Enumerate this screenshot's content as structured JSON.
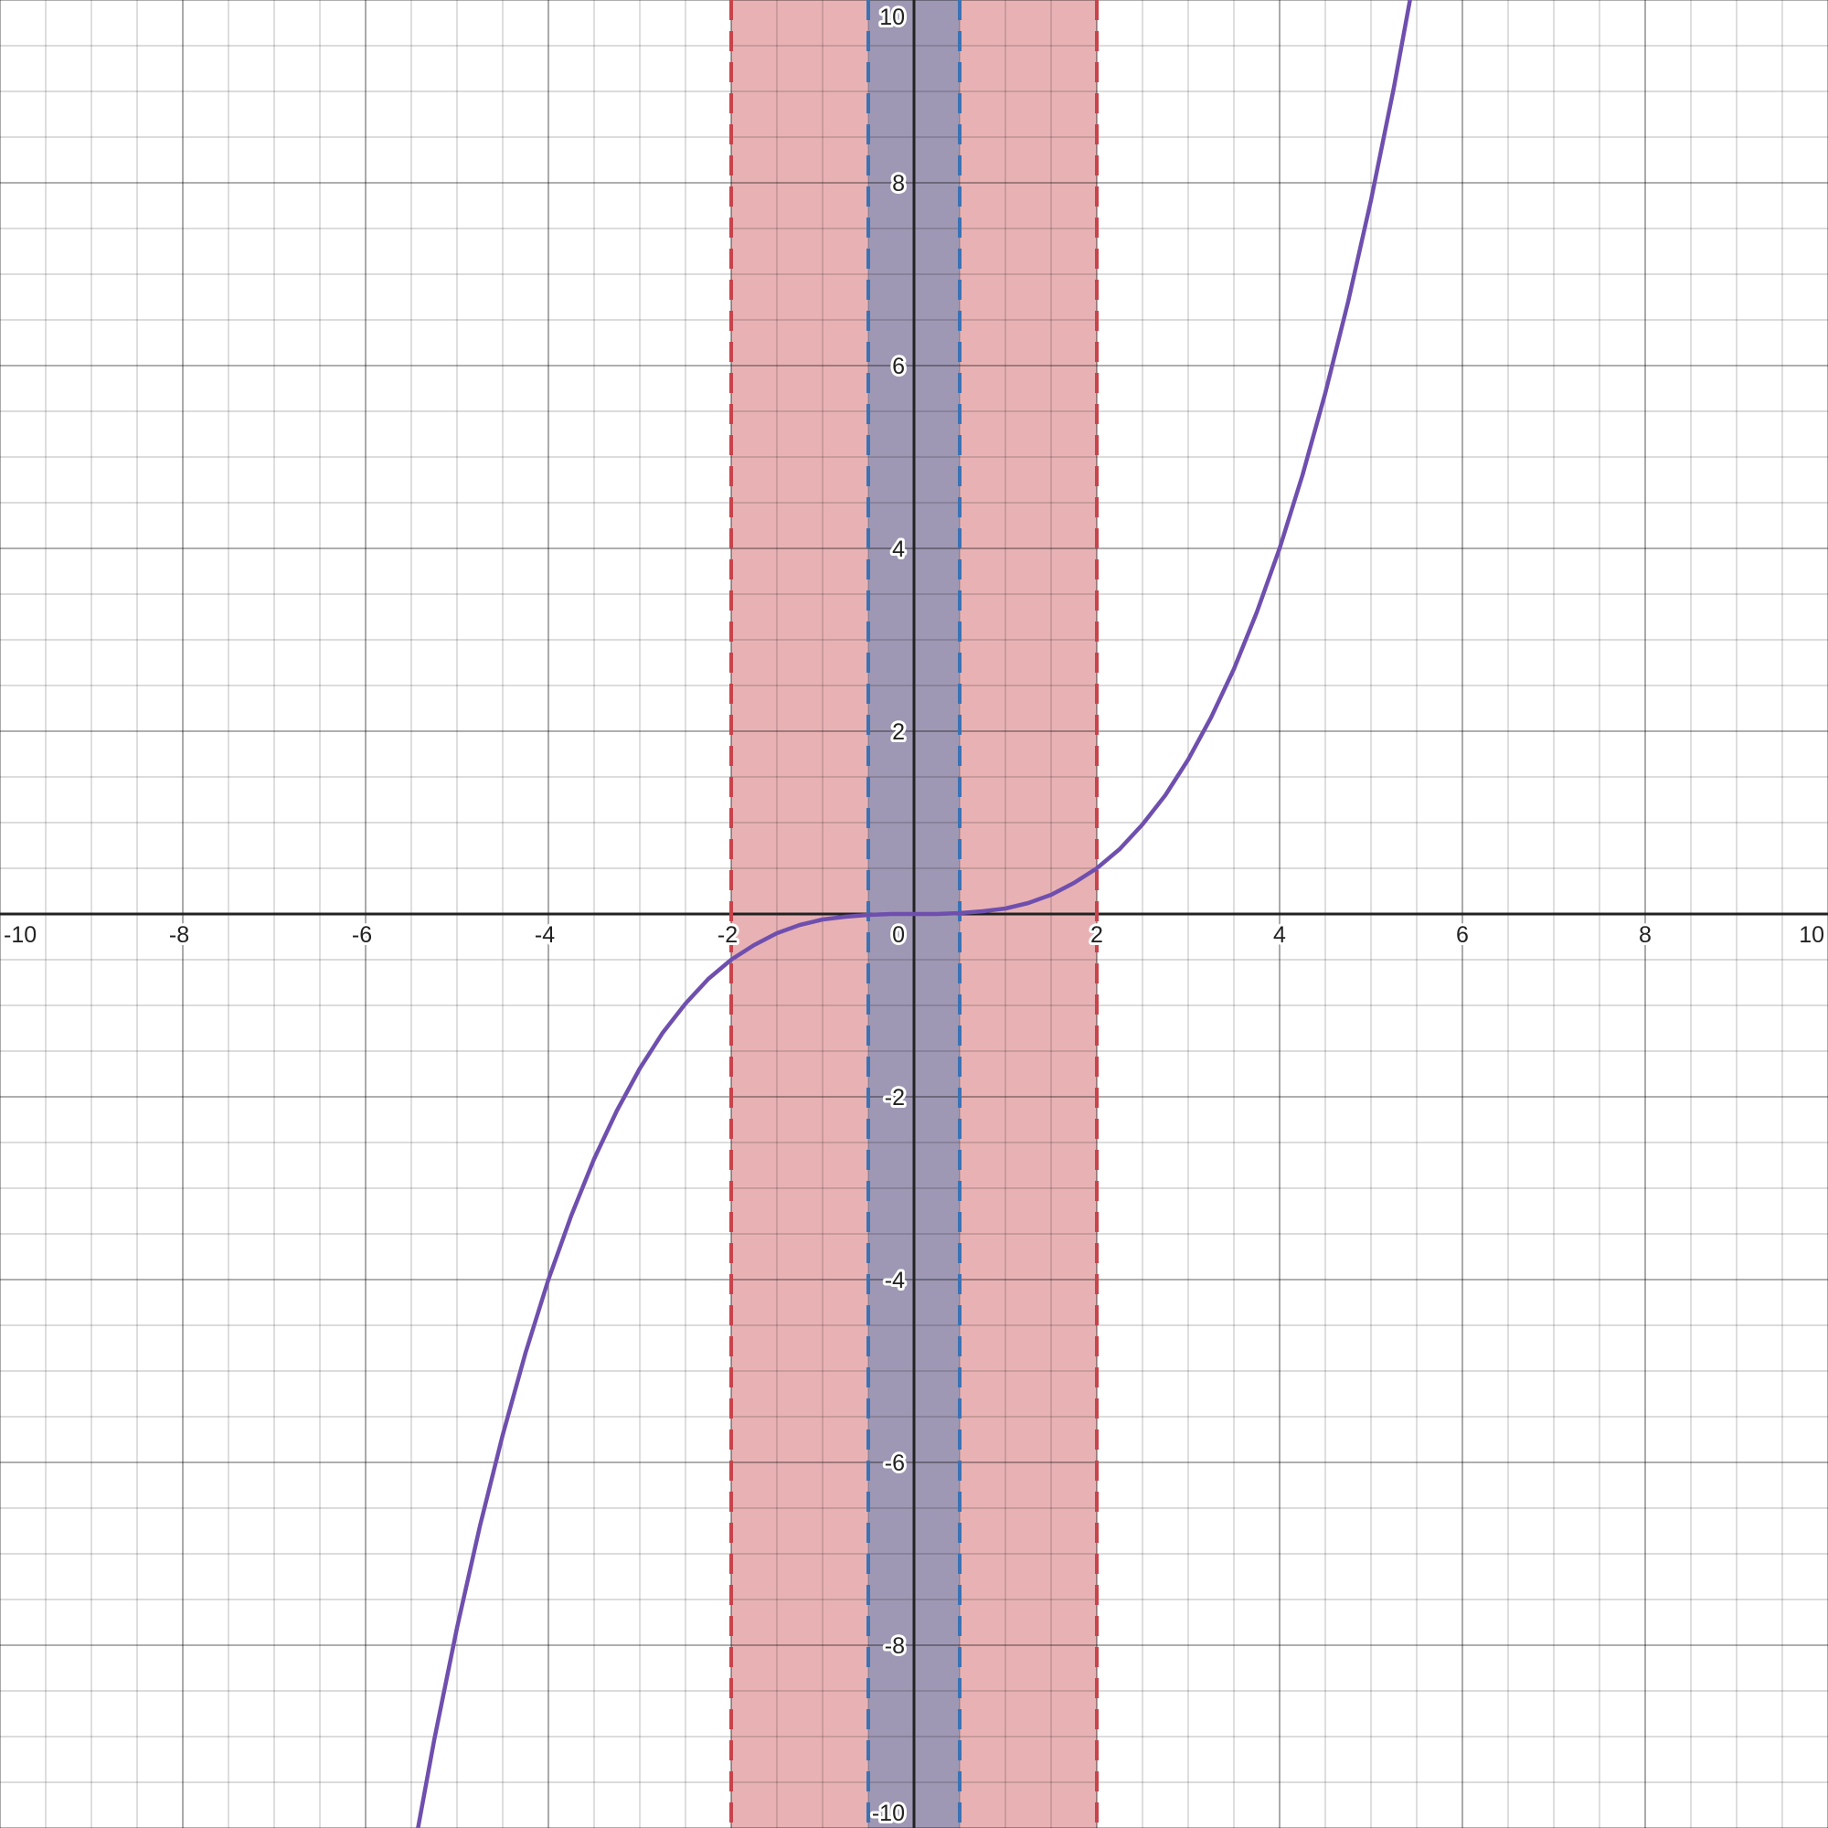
{
  "chart_data": {
    "type": "line",
    "title": "",
    "xlabel": "",
    "ylabel": "",
    "xlim": [
      -10,
      10
    ],
    "ylim": [
      -10,
      10
    ],
    "grid": true,
    "x_ticks": [
      -10,
      -8,
      -6,
      -4,
      -2,
      2,
      4,
      6,
      8,
      10
    ],
    "y_ticks": [
      -10,
      -8,
      -6,
      -4,
      -2,
      2,
      4,
      6,
      8,
      10
    ],
    "origin_label": "0",
    "tick_labels": {
      "x": [
        "-10",
        "-8",
        "-6",
        "-4",
        "-2",
        "2",
        "4",
        "6",
        "8",
        "10"
      ],
      "y": [
        "-10",
        "-8",
        "-6",
        "-4",
        "-2",
        "2",
        "4",
        "6",
        "8",
        "10"
      ]
    },
    "series": [
      {
        "color": "#6f4fae",
        "x": [
          -5.5,
          -5.25,
          -5.0,
          -4.75,
          -4.5,
          -4.25,
          -4.0,
          -3.75,
          -3.5,
          -3.25,
          -3.0,
          -2.75,
          -2.5,
          -2.25,
          -2.0,
          -1.75,
          -1.5,
          -1.25,
          -1.0,
          -0.75,
          -0.5,
          -0.25,
          0.0,
          0.25,
          0.5,
          0.75,
          1.0,
          1.25,
          1.5,
          1.75,
          2.0,
          2.25,
          2.5,
          2.75,
          3.0,
          3.25,
          3.5,
          3.75,
          4.0,
          4.25,
          4.5,
          4.75,
          5.0,
          5.25,
          5.5
        ],
        "y": [
          -10.4,
          -9.04,
          -7.81,
          -6.7,
          -5.7,
          -4.8,
          -4.0,
          -3.3,
          -2.68,
          -2.15,
          -1.69,
          -1.3,
          -0.98,
          -0.71,
          -0.5,
          -0.34,
          -0.21,
          -0.12,
          -0.06,
          -0.03,
          -0.01,
          0.0,
          0.0,
          0.0,
          0.01,
          0.03,
          0.06,
          0.12,
          0.21,
          0.34,
          0.5,
          0.71,
          0.98,
          1.3,
          1.69,
          2.15,
          2.68,
          3.3,
          4.0,
          4.8,
          5.7,
          6.7,
          7.81,
          9.04,
          10.4
        ]
      }
    ],
    "bands": [
      {
        "x_min": -2,
        "x_max": 2,
        "fill": "#e8b2b4",
        "edge": "#c8434b"
      },
      {
        "x_min": -0.5,
        "x_max": 0.5,
        "fill": "#9e98b4",
        "edge": "#3b72b4"
      }
    ]
  }
}
